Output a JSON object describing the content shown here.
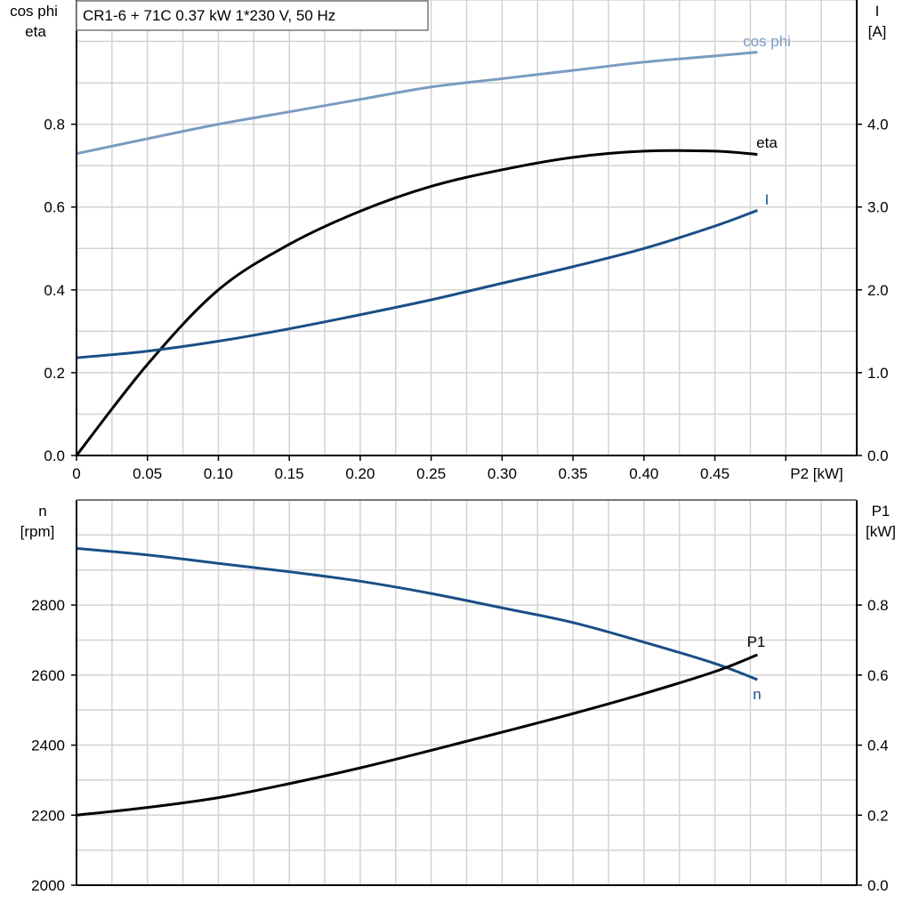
{
  "title": "CR1-6 + 71C   0.37 kW   1*230 V, 50 Hz",
  "colors": {
    "cos_phi": "#7a9cc0",
    "I": "#1a4f86",
    "n": "#1a4f86",
    "eta": "#000000",
    "P1": "#000000"
  },
  "chart_data": [
    {
      "type": "line",
      "xlabel": "P2 [kW]",
      "ylabel_left": [
        "cos phi",
        "eta"
      ],
      "ylabel_right": [
        "I",
        "[A]"
      ],
      "xlim": [
        0,
        0.55
      ],
      "ylim_left": [
        0,
        1.1
      ],
      "ylim_right": [
        0,
        5.5
      ],
      "grid": true,
      "x_ticks": [
        "0",
        "0.05",
        "0.10",
        "0.15",
        "0.20",
        "0.25",
        "0.30",
        "0.35",
        "0.40",
        "0.45"
      ],
      "y_ticks_left": [
        "0.0",
        "0.2",
        "0.4",
        "0.6",
        "0.8"
      ],
      "y_ticks_right": [
        "0.0",
        "1.0",
        "2.0",
        "3.0",
        "4.0"
      ],
      "x": [
        0,
        0.05,
        0.1,
        0.15,
        0.2,
        0.25,
        0.3,
        0.35,
        0.4,
        0.45,
        0.48
      ],
      "series": [
        {
          "name": "cos phi",
          "axis": "left",
          "values": [
            0.729,
            0.765,
            0.8,
            0.83,
            0.86,
            0.89,
            0.91,
            0.93,
            0.95,
            0.965,
            0.974
          ]
        },
        {
          "name": "eta",
          "axis": "left",
          "values": [
            0,
            0.22,
            0.4,
            0.51,
            0.59,
            0.65,
            0.69,
            0.72,
            0.735,
            0.735,
            0.727
          ]
        },
        {
          "name": "I",
          "axis": "right",
          "values": [
            1.18,
            1.26,
            1.38,
            1.53,
            1.7,
            1.88,
            2.08,
            2.28,
            2.5,
            2.77,
            2.96
          ]
        }
      ]
    },
    {
      "type": "line",
      "ylabel_left": [
        "n",
        "[rpm]"
      ],
      "ylabel_right": [
        "P1",
        "[kW]"
      ],
      "xlim": [
        0,
        0.55
      ],
      "ylim_left": [
        2000,
        3100
      ],
      "ylim_right": [
        0,
        1.1
      ],
      "grid": true,
      "y_ticks_left": [
        "2000",
        "2200",
        "2400",
        "2600",
        "2800"
      ],
      "y_ticks_right": [
        "0.0",
        "0.2",
        "0.4",
        "0.6",
        "0.8"
      ],
      "x": [
        0,
        0.05,
        0.1,
        0.15,
        0.2,
        0.25,
        0.3,
        0.35,
        0.4,
        0.45,
        0.48
      ],
      "series": [
        {
          "name": "n",
          "axis": "left",
          "values": [
            2962,
            2943,
            2919,
            2895,
            2868,
            2833,
            2792,
            2750,
            2694,
            2633,
            2587
          ]
        },
        {
          "name": "P1",
          "axis": "right",
          "values": [
            0.2,
            0.222,
            0.25,
            0.29,
            0.335,
            0.385,
            0.437,
            0.49,
            0.547,
            0.61,
            0.658
          ]
        }
      ]
    }
  ]
}
